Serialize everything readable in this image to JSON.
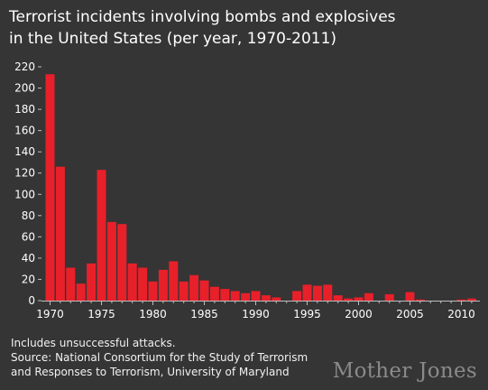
{
  "title_lines": [
    "Terrorist incidents involving bombs and explosives",
    "in the United States (per year, 1970-2011)"
  ],
  "notes": [
    "Includes unsuccessful attacks.",
    "Source: National Consortium for the Study of Terrorism",
    "and Responses to Terrorism, University of Maryland"
  ],
  "brand": "Mother Jones",
  "colors": {
    "bar": "#e8202a",
    "background": "#353535",
    "axis": "#bdbdbd",
    "text": "#ffffff"
  },
  "chart_data": {
    "type": "bar",
    "title": "Terrorist incidents involving bombs and explosives in the United States (per year, 1970-2011)",
    "xlabel": "",
    "ylabel": "",
    "ylim": [
      0,
      220
    ],
    "yticks": [
      0,
      20,
      40,
      60,
      80,
      100,
      120,
      140,
      160,
      180,
      200,
      220
    ],
    "xticks": [
      1970,
      1975,
      1980,
      1985,
      1990,
      1995,
      2000,
      2005,
      2010
    ],
    "grid": false,
    "categories": [
      1970,
      1971,
      1972,
      1973,
      1974,
      1975,
      1976,
      1977,
      1978,
      1979,
      1980,
      1981,
      1982,
      1983,
      1984,
      1985,
      1986,
      1987,
      1988,
      1989,
      1990,
      1991,
      1992,
      1993,
      1994,
      1995,
      1996,
      1997,
      1998,
      1999,
      2000,
      2001,
      2002,
      2003,
      2004,
      2005,
      2006,
      2007,
      2008,
      2009,
      2010,
      2011
    ],
    "values": [
      213,
      126,
      31,
      16,
      35,
      123,
      74,
      72,
      35,
      31,
      18,
      29,
      37,
      18,
      24,
      19,
      13,
      11,
      9,
      7,
      9,
      5,
      3,
      0,
      9,
      15,
      14,
      15,
      5,
      2,
      3,
      7,
      0,
      6,
      0,
      8,
      1,
      0,
      0,
      0,
      1,
      2
    ]
  }
}
